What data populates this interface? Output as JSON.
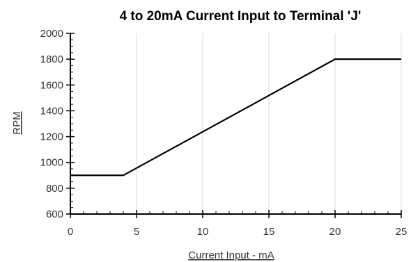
{
  "chart_data": {
    "type": "line",
    "title": "4 to 20mA Current Input to Terminal 'J'",
    "xlabel": "Current Input - mA",
    "ylabel": "RPM",
    "xlim": [
      0,
      25
    ],
    "ylim": [
      600,
      2000
    ],
    "x_ticks": [
      0,
      5,
      10,
      15,
      20,
      25
    ],
    "y_ticks": [
      600,
      800,
      1000,
      1200,
      1400,
      1600,
      1800,
      2000
    ],
    "x_tick_labels": [
      "0",
      "5",
      "10",
      "15",
      "20",
      "25"
    ],
    "y_tick_labels": [
      "600",
      "800",
      "1000",
      "1200",
      "1400",
      "1600",
      "1800",
      "2000"
    ],
    "grid": "vertical",
    "legend": "none",
    "series": [
      {
        "color": "#000000",
        "x": [
          0,
          4,
          20,
          25
        ],
        "y": [
          900,
          900,
          1800,
          1800
        ]
      }
    ]
  }
}
